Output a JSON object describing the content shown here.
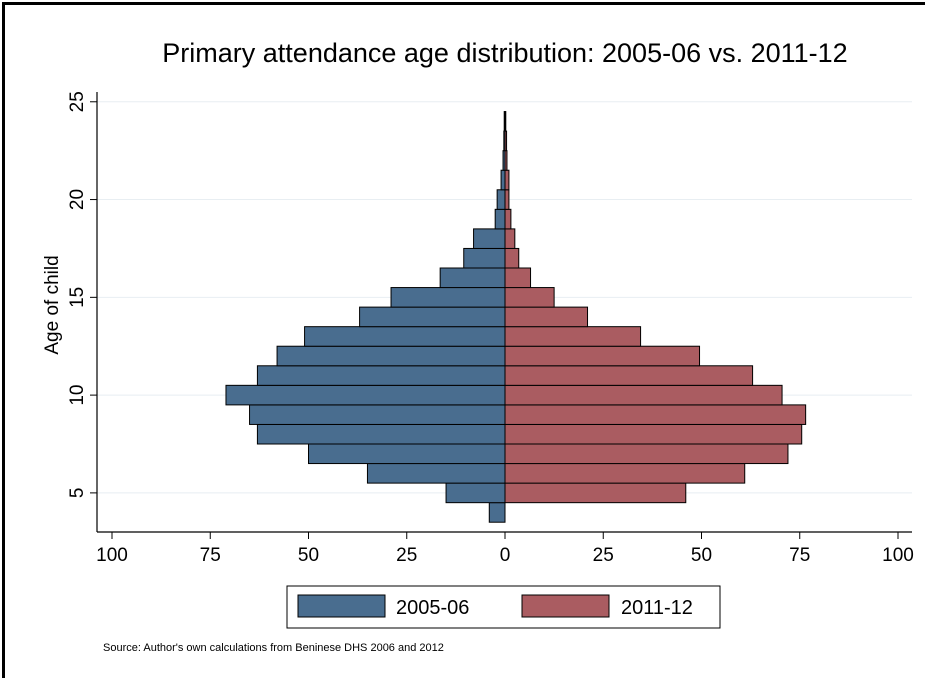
{
  "chart_data": {
    "type": "bar",
    "orientation": "horizontal-pyramid",
    "title": "Primary attendance age distribution: 2005-06 vs. 2011-12",
    "ylabel": "Age of child",
    "xlabel": "",
    "ylim": [
      3,
      25.5
    ],
    "xlim": [
      -100,
      100
    ],
    "x_ticks": [
      -100,
      -75,
      -50,
      -25,
      0,
      25,
      50,
      75,
      100
    ],
    "x_tick_labels": [
      "100",
      "75",
      "50",
      "25",
      "0",
      "25",
      "50",
      "75",
      "100"
    ],
    "y_ticks": [
      5,
      10,
      15,
      20,
      25
    ],
    "y_tick_labels": [
      "5",
      "10",
      "15",
      "20",
      "25"
    ],
    "grid": "horizontal",
    "legend": "bottom",
    "ages": [
      4,
      5,
      6,
      7,
      8,
      9,
      10,
      11,
      12,
      13,
      14,
      15,
      16,
      17,
      18,
      19,
      20,
      21,
      22,
      23,
      24
    ],
    "series": [
      {
        "name": "2005-06",
        "side": "left",
        "color": "#496d8f",
        "values": [
          4,
          15,
          35,
          50,
          63,
          65,
          71,
          63,
          58,
          51,
          37,
          29,
          16.5,
          10.5,
          8,
          2.5,
          2,
          1,
          0.5,
          0.3,
          0.2
        ]
      },
      {
        "name": "2011-12",
        "side": "right",
        "color": "#aa5c61",
        "values": [
          0,
          46,
          61,
          72,
          75.5,
          76.5,
          70.5,
          63,
          49.5,
          34.5,
          21,
          12.5,
          6.5,
          3.5,
          2.5,
          1.5,
          1,
          1,
          0.5,
          0.4,
          0.2
        ]
      }
    ],
    "note": "Source: Author's own calculations from Beninese DHS 2006 and 2012"
  }
}
